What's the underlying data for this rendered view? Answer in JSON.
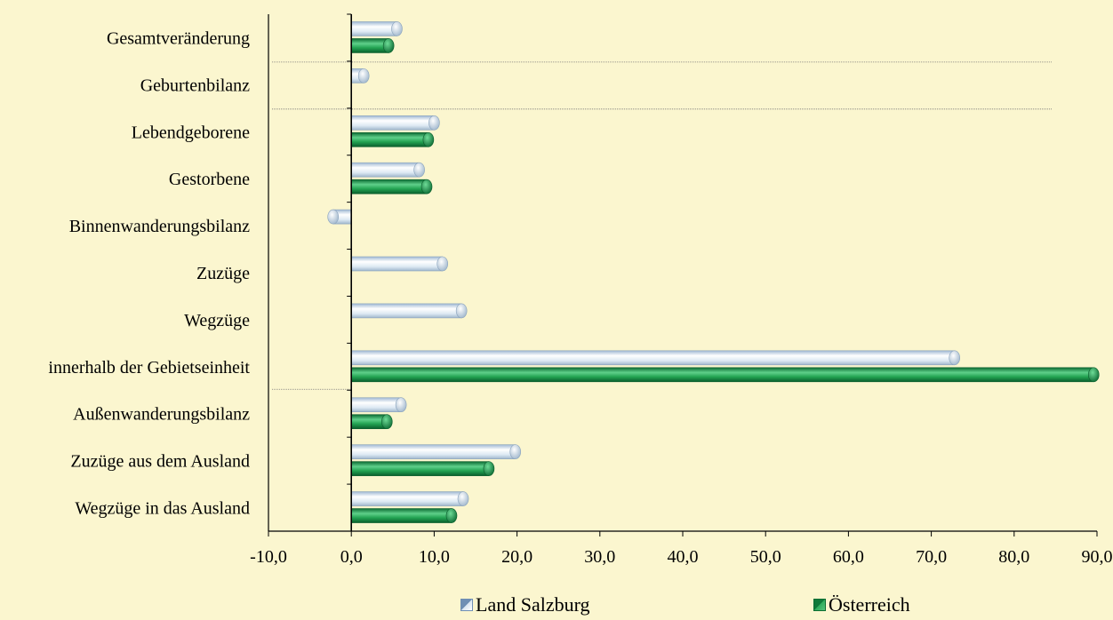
{
  "chart_data": {
    "type": "bar",
    "orientation": "horizontal",
    "categories": [
      "Gesamtveränderung",
      "Geburtenbilanz",
      "Lebendgeborene",
      "Gestorbene",
      "Binnenwanderungsbilanz",
      "Zuzüge",
      "Wegzüge",
      "innerhalb der Gebietseinheit",
      "Außenwanderungsbilanz",
      "Zuzüge aus dem Ausland",
      "Wegzüge in das Ausland"
    ],
    "series": [
      {
        "name": "Land Salzburg",
        "color": "#cfe0ee",
        "values": [
          5.5,
          1.5,
          10.0,
          8.2,
          -2.2,
          11.0,
          13.3,
          72.8,
          6.0,
          19.8,
          13.5
        ]
      },
      {
        "name": "Österreich",
        "color": "#1f9a4c",
        "values": [
          4.5,
          null,
          9.3,
          9.1,
          null,
          null,
          null,
          89.6,
          4.3,
          16.6,
          12.1
        ]
      }
    ],
    "xlim": [
      -10,
      90
    ],
    "xticks": [
      "-10,0",
      "0,0",
      "10,0",
      "20,0",
      "30,0",
      "40,0",
      "50,0",
      "60,0",
      "70,0",
      "80,0",
      "90,0"
    ],
    "legend_position": "bottom",
    "grid": false
  }
}
